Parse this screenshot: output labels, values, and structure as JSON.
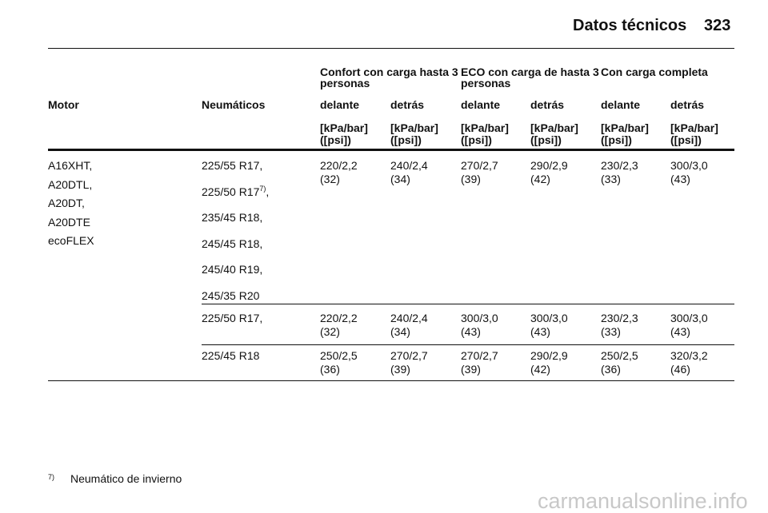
{
  "header": {
    "title": "Datos técnicos",
    "page": "323"
  },
  "table": {
    "group_headers": [
      "Confort con carga hasta 3 personas",
      "ECO con carga de hasta 3 personas",
      "Con carga completa"
    ],
    "columns": [
      "Motor",
      "Neumáticos",
      "delante",
      "detrás",
      "delante",
      "detrás",
      "delante",
      "detrás"
    ],
    "units": [
      [
        "[kPa/bar]",
        "([psi])"
      ],
      [
        "[kPa/bar]",
        "([psi])"
      ],
      [
        "[kPa/bar]",
        "([psi])"
      ],
      [
        "[kPa/bar]",
        "([psi])"
      ],
      [
        "[kPa/bar]",
        "([psi])"
      ],
      [
        "[kPa/bar]",
        "([psi])"
      ]
    ],
    "motor": [
      "A16XHT,",
      "A20DTL,",
      "A20DT,",
      "A20DTE",
      "ecoFLEX"
    ],
    "rows": [
      {
        "tyres": [
          {
            "text": "225/55 R17,"
          },
          {
            "text": "225/50 R17",
            "note": "7)",
            "after": ","
          },
          {
            "text": "235/45 R18,"
          },
          {
            "text": "245/45 R18,"
          },
          {
            "text": "245/40 R19,"
          },
          {
            "text": "245/35 R20"
          }
        ],
        "values": [
          [
            "220/2,2",
            "(32)"
          ],
          [
            "240/2,4",
            "(34)"
          ],
          [
            "270/2,7",
            "(39)"
          ],
          [
            "290/2,9",
            "(42)"
          ],
          [
            "230/2,3",
            "(33)"
          ],
          [
            "300/3,0",
            "(43)"
          ]
        ]
      },
      {
        "tyres": [
          {
            "text": "225/50 R17,"
          }
        ],
        "values": [
          [
            "220/2,2",
            "(32)"
          ],
          [
            "240/2,4",
            "(34)"
          ],
          [
            "300/3,0",
            "(43)"
          ],
          [
            "300/3,0",
            "(43)"
          ],
          [
            "230/2,3",
            "(33)"
          ],
          [
            "300/3,0",
            "(43)"
          ]
        ]
      },
      {
        "tyres": [
          {
            "text": "225/45 R18"
          }
        ],
        "values": [
          [
            "250/2,5",
            "(36)"
          ],
          [
            "270/2,7",
            "(39)"
          ],
          [
            "270/2,7",
            "(39)"
          ],
          [
            "290/2,9",
            "(42)"
          ],
          [
            "250/2,5",
            "(36)"
          ],
          [
            "320/3,2",
            "(46)"
          ]
        ]
      }
    ]
  },
  "footnote": {
    "mark": "7)",
    "text": "Neumático de invierno"
  },
  "watermark": "carmanualsonline.info"
}
